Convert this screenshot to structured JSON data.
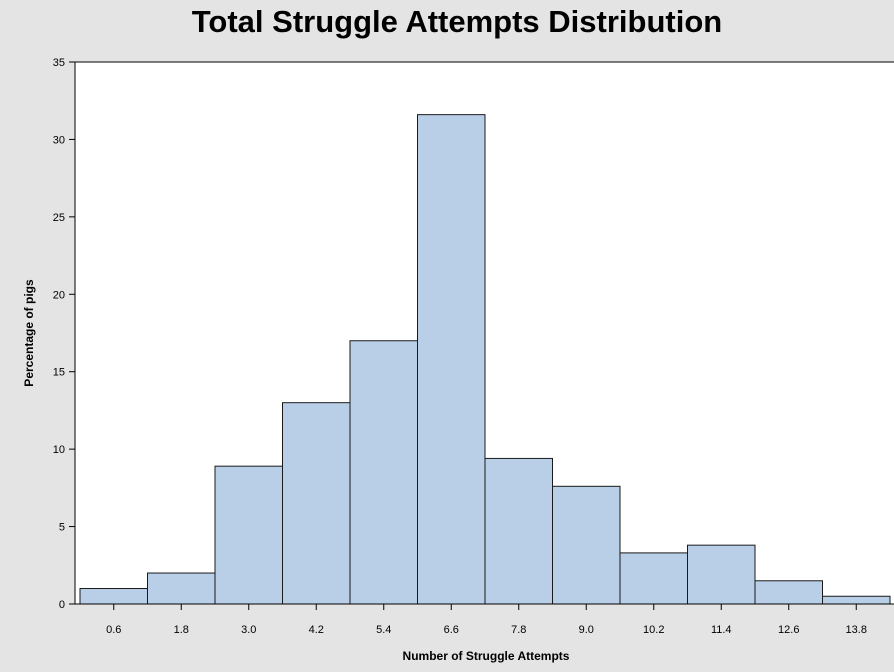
{
  "chart_data": {
    "type": "bar",
    "title": "Total Struggle Attempts Distribution",
    "xlabel": "Number of Struggle Attempts",
    "ylabel": "Percentage of pigs",
    "categories": [
      "0.6",
      "1.8",
      "3.0",
      "4.2",
      "5.4",
      "6.6",
      "7.8",
      "9.0",
      "10.2",
      "11.4",
      "12.6",
      "13.8"
    ],
    "values": [
      1.0,
      2.0,
      8.9,
      13.0,
      17.0,
      31.6,
      9.4,
      7.6,
      3.3,
      3.8,
      1.5,
      0.5
    ],
    "yticks": [
      0,
      5,
      10,
      15,
      20,
      25,
      30,
      35
    ],
    "ylim": [
      0,
      35
    ],
    "grid": false,
    "colors": {
      "bar_fill": "#b9cfe8",
      "bar_edge": "#1a1a1a",
      "plot_bg": "#ffffff",
      "page_bg": "#e4e4e4"
    }
  }
}
